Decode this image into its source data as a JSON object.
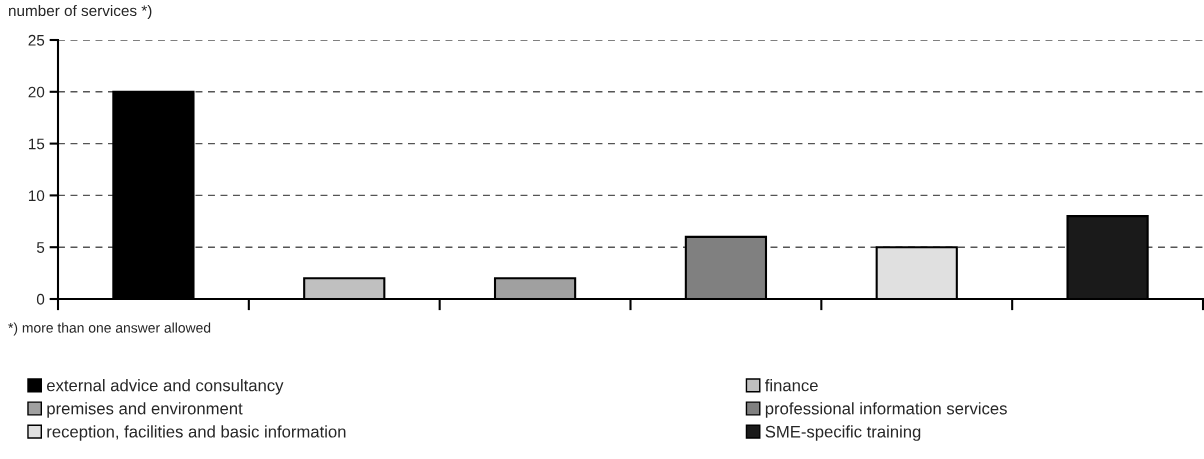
{
  "chart_data": {
    "type": "bar",
    "ylabel": "number of services *)",
    "categories": [
      null,
      null,
      null,
      null,
      null,
      null
    ],
    "series": [
      {
        "name": "external advice and consultancy",
        "color": "#000000",
        "values": [
          20,
          null,
          null,
          null,
          null,
          null
        ]
      },
      {
        "name": "finance",
        "color": "#c0c0c0",
        "values": [
          null,
          2,
          null,
          null,
          null,
          null
        ]
      },
      {
        "name": "premises and environment",
        "color": "#a0a0a0",
        "values": [
          null,
          null,
          2,
          null,
          null,
          null
        ]
      },
      {
        "name": "professional information services",
        "color": "#808080",
        "values": [
          null,
          null,
          null,
          6,
          null,
          null
        ]
      },
      {
        "name": "reception, facilities and basic information",
        "color": "#e0e0e0",
        "values": [
          null,
          null,
          null,
          null,
          5,
          null
        ]
      },
      {
        "name": "SME-specific training",
        "color": "#1a1a1a",
        "values": [
          null,
          null,
          null,
          null,
          null,
          8
        ]
      }
    ],
    "ylim": [
      0,
      25
    ],
    "yticks": [
      0,
      5,
      10,
      15,
      20,
      25
    ],
    "grid": "y",
    "legend": "bottom",
    "annotations": [
      "*) more than one answer allowed"
    ]
  }
}
